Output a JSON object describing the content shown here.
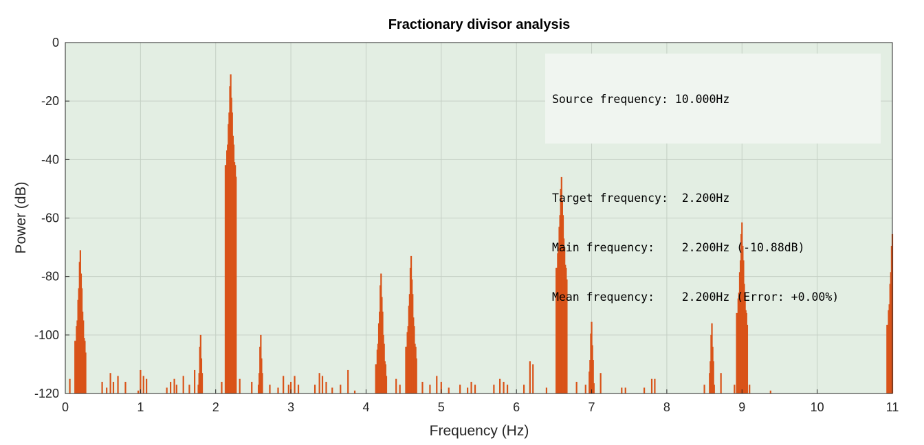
{
  "chart_data": {
    "type": "bar",
    "title": "Fractionary divisor analysis",
    "xlabel": "Frequency (Hz)",
    "ylabel": "Power (dB)",
    "xlim": [
      0,
      11
    ],
    "ylim": [
      -120,
      0
    ],
    "xticks": [
      "0",
      "1",
      "2",
      "3",
      "4",
      "5",
      "6",
      "7",
      "8",
      "9",
      "10",
      "11"
    ],
    "yticks": [
      "0",
      "-20",
      "-40",
      "-60",
      "-80",
      "-100",
      "-120"
    ],
    "grid": true,
    "colors": {
      "bars": "#d95319",
      "plot_background": "#e3eee3",
      "grid": "#c4cfc4"
    },
    "peaks": [
      {
        "x": 0.2,
        "y": -71
      },
      {
        "x": 1.8,
        "y": -100
      },
      {
        "x": 2.2,
        "y": -10.88
      },
      {
        "x": 2.6,
        "y": -100
      },
      {
        "x": 4.2,
        "y": -79
      },
      {
        "x": 4.6,
        "y": -73
      },
      {
        "x": 6.6,
        "y": -46
      },
      {
        "x": 7.0,
        "y": -95.5
      },
      {
        "x": 8.6,
        "y": -96
      },
      {
        "x": 9.0,
        "y": -61.5
      },
      {
        "x": 11.0,
        "y": -65.5
      }
    ],
    "small_bars": [
      {
        "x": 0.06,
        "y": -115
      },
      {
        "x": 0.49,
        "y": -116
      },
      {
        "x": 0.55,
        "y": -118
      },
      {
        "x": 0.6,
        "y": -113
      },
      {
        "x": 0.64,
        "y": -116
      },
      {
        "x": 0.7,
        "y": -114
      },
      {
        "x": 0.8,
        "y": -116
      },
      {
        "x": 0.97,
        "y": -119
      },
      {
        "x": 1.0,
        "y": -112
      },
      {
        "x": 1.04,
        "y": -114
      },
      {
        "x": 1.08,
        "y": -115
      },
      {
        "x": 1.35,
        "y": -118
      },
      {
        "x": 1.4,
        "y": -116
      },
      {
        "x": 1.45,
        "y": -115
      },
      {
        "x": 1.48,
        "y": -117
      },
      {
        "x": 1.57,
        "y": -114
      },
      {
        "x": 1.65,
        "y": -117
      },
      {
        "x": 1.72,
        "y": -112
      },
      {
        "x": 2.08,
        "y": -116
      },
      {
        "x": 2.32,
        "y": -115
      },
      {
        "x": 2.48,
        "y": -116
      },
      {
        "x": 2.72,
        "y": -117
      },
      {
        "x": 2.83,
        "y": -118
      },
      {
        "x": 2.9,
        "y": -114
      },
      {
        "x": 2.97,
        "y": -117
      },
      {
        "x": 3.0,
        "y": -116
      },
      {
        "x": 3.05,
        "y": -114
      },
      {
        "x": 3.1,
        "y": -117
      },
      {
        "x": 3.32,
        "y": -117
      },
      {
        "x": 3.38,
        "y": -113
      },
      {
        "x": 3.42,
        "y": -114
      },
      {
        "x": 3.47,
        "y": -116
      },
      {
        "x": 3.55,
        "y": -118
      },
      {
        "x": 3.66,
        "y": -117
      },
      {
        "x": 3.76,
        "y": -112
      },
      {
        "x": 3.85,
        "y": -119
      },
      {
        "x": 4.4,
        "y": -115
      },
      {
        "x": 4.45,
        "y": -117
      },
      {
        "x": 4.75,
        "y": -116
      },
      {
        "x": 4.85,
        "y": -117
      },
      {
        "x": 4.94,
        "y": -114
      },
      {
        "x": 5.0,
        "y": -116
      },
      {
        "x": 5.1,
        "y": -118
      },
      {
        "x": 5.25,
        "y": -117
      },
      {
        "x": 5.35,
        "y": -118
      },
      {
        "x": 5.4,
        "y": -116
      },
      {
        "x": 5.45,
        "y": -117
      },
      {
        "x": 5.7,
        "y": -117
      },
      {
        "x": 5.78,
        "y": -115
      },
      {
        "x": 5.83,
        "y": -116
      },
      {
        "x": 5.88,
        "y": -117
      },
      {
        "x": 6.1,
        "y": -117
      },
      {
        "x": 6.18,
        "y": -109
      },
      {
        "x": 6.22,
        "y": -110
      },
      {
        "x": 6.4,
        "y": -118
      },
      {
        "x": 6.8,
        "y": -116
      },
      {
        "x": 6.92,
        "y": -117
      },
      {
        "x": 7.12,
        "y": -113
      },
      {
        "x": 7.4,
        "y": -118
      },
      {
        "x": 7.45,
        "y": -118
      },
      {
        "x": 7.7,
        "y": -118
      },
      {
        "x": 7.8,
        "y": -115
      },
      {
        "x": 7.84,
        "y": -115
      },
      {
        "x": 8.5,
        "y": -117
      },
      {
        "x": 8.72,
        "y": -113
      },
      {
        "x": 8.9,
        "y": -117
      },
      {
        "x": 9.1,
        "y": -117
      },
      {
        "x": 9.38,
        "y": -119
      }
    ]
  },
  "info_box": {
    "line1": "Source frequency: 10.000Hz",
    "line2": "",
    "line3": "Target frequency:  2.200Hz",
    "line4": "Main frequency:    2.200Hz (-10.88dB)",
    "line5": "Mean frequency:    2.200Hz (Error: +0.00%)"
  }
}
